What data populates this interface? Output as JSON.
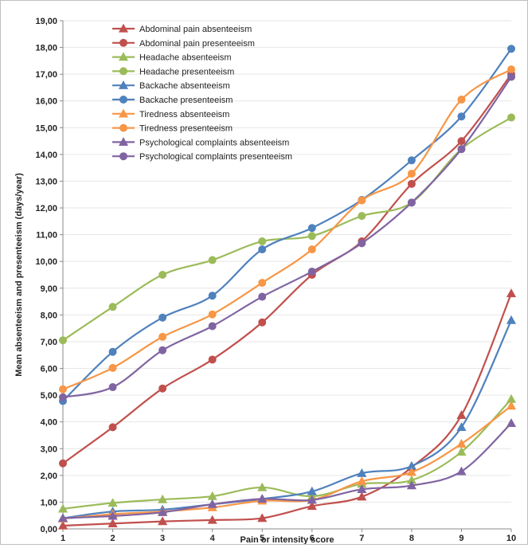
{
  "chart_data": {
    "type": "line",
    "x": [
      1,
      2,
      3,
      4,
      5,
      6,
      7,
      8,
      9,
      10
    ],
    "xlabel": "Pain or intensity score",
    "ylabel": "Mean absenteeism and presenteeism (days/year)",
    "ylim": [
      0,
      19
    ],
    "ytick_labels": [
      "0,00",
      "1,00",
      "2,00",
      "3,00",
      "4,00",
      "5,00",
      "6,00",
      "7,00",
      "8,00",
      "9,00",
      "10,00",
      "11,00",
      "12,00",
      "13,00",
      "14,00",
      "15,00",
      "16,00",
      "17,00",
      "18,00",
      "19,00"
    ],
    "xtick_labels": [
      "1",
      "2",
      "3",
      "4",
      "5",
      "6",
      "7",
      "8",
      "9",
      "10"
    ],
    "grid": true,
    "legend_position": "top-left",
    "series": [
      {
        "name": "Abdominal pain absenteeism",
        "color": "#c0504d",
        "marker": "triangle",
        "values": [
          0.12,
          0.2,
          0.28,
          0.33,
          0.4,
          0.85,
          1.2,
          2.3,
          4.25,
          8.8
        ]
      },
      {
        "name": "Abdominal pain presenteeism",
        "color": "#c0504d",
        "marker": "circle",
        "values": [
          2.45,
          3.8,
          5.25,
          6.33,
          7.72,
          9.5,
          10.75,
          12.9,
          14.5,
          17.0
        ]
      },
      {
        "name": "Headache absenteeism",
        "color": "#9bbb59",
        "marker": "triangle",
        "values": [
          0.75,
          0.97,
          1.1,
          1.22,
          1.55,
          1.22,
          1.68,
          1.82,
          2.88,
          4.85
        ]
      },
      {
        "name": "Headache presenteeism",
        "color": "#9bbb59",
        "marker": "circle",
        "values": [
          7.05,
          8.3,
          9.5,
          10.05,
          10.75,
          10.95,
          11.7,
          12.2,
          14.2,
          15.38
        ]
      },
      {
        "name": "Backache absenteeism",
        "color": "#4f81bd",
        "marker": "triangle",
        "values": [
          0.4,
          0.65,
          0.72,
          0.92,
          1.12,
          1.4,
          2.08,
          2.35,
          3.8,
          7.8
        ]
      },
      {
        "name": "Backache presenteeism",
        "color": "#4f81bd",
        "marker": "circle",
        "values": [
          4.78,
          6.62,
          7.9,
          8.72,
          10.45,
          11.25,
          12.3,
          13.78,
          15.42,
          17.95
        ]
      },
      {
        "name": "Tiredness absenteeism",
        "color": "#f79646",
        "marker": "triangle",
        "values": [
          0.38,
          0.55,
          0.65,
          0.8,
          1.05,
          1.08,
          1.78,
          2.12,
          3.18,
          4.6
        ]
      },
      {
        "name": "Tiredness presenteeism",
        "color": "#f79646",
        "marker": "circle",
        "values": [
          5.22,
          6.02,
          7.18,
          8.02,
          9.2,
          10.45,
          12.28,
          13.28,
          16.05,
          17.18
        ]
      },
      {
        "name": "Psychological complaints absenteeism",
        "color": "#8064a2",
        "marker": "triangle",
        "values": [
          0.4,
          0.48,
          0.62,
          0.92,
          1.12,
          1.08,
          1.48,
          1.62,
          2.15,
          3.95
        ]
      },
      {
        "name": "Psychological complaints presenteeism",
        "color": "#8064a2",
        "marker": "circle",
        "values": [
          4.92,
          5.3,
          6.68,
          7.58,
          8.68,
          9.62,
          10.68,
          12.2,
          14.2,
          16.9
        ]
      }
    ]
  }
}
